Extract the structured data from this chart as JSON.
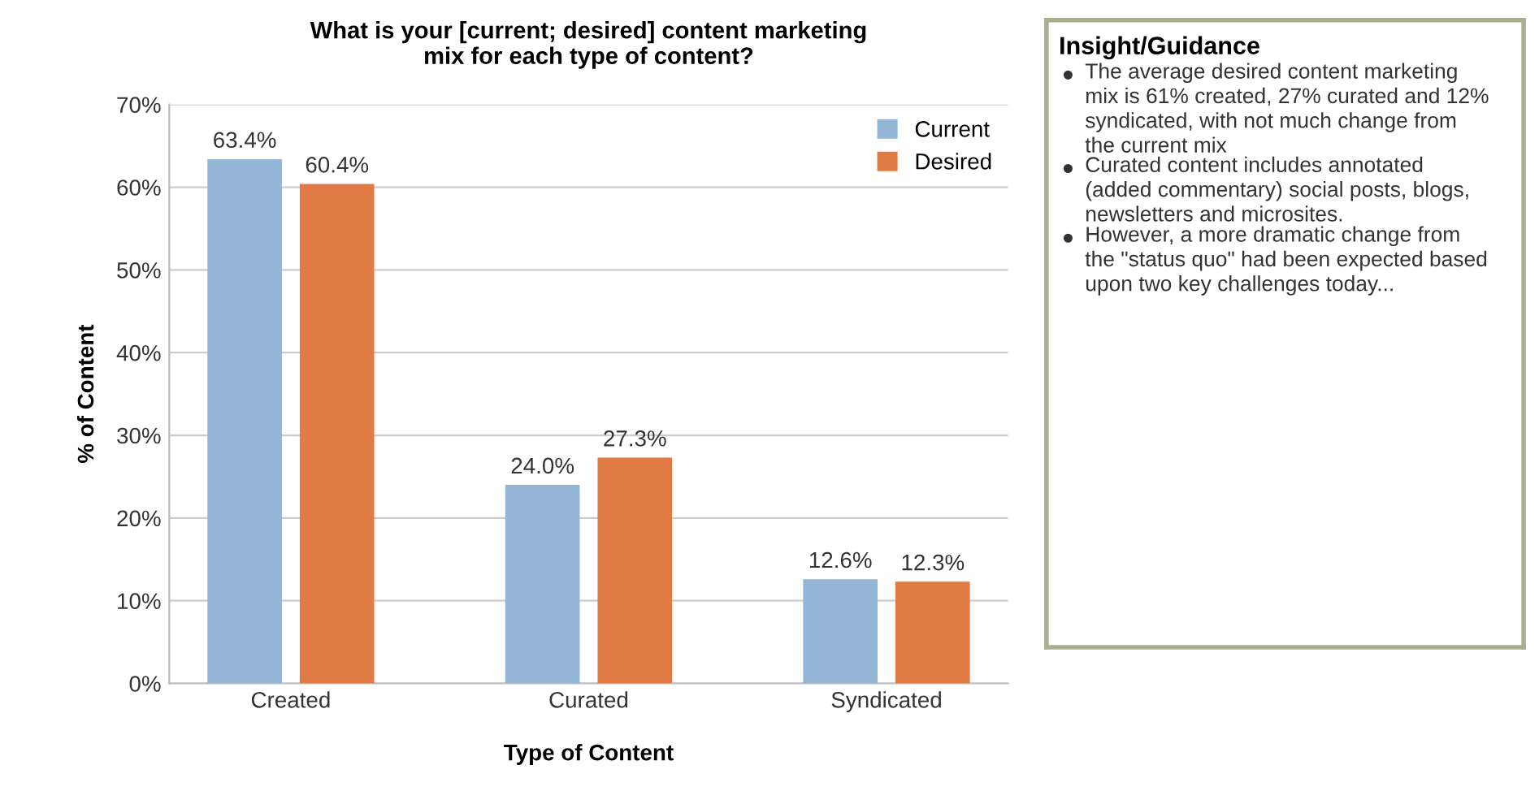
{
  "chart_data": [
    {
      "type": "bar",
      "title": "What is your [current; desired] content marketing\nmix for each type of content?",
      "xlabel": "Type of Content",
      "ylabel": "% of Content",
      "categories": [
        "Created",
        "Curated",
        "Syndicated"
      ],
      "series": [
        {
          "name": "Current",
          "color": "#94b6d6",
          "values": [
            63.4,
            24.0,
            12.6
          ]
        },
        {
          "name": "Desired",
          "color": "#e07b45",
          "values": [
            60.4,
            27.3,
            12.3
          ]
        }
      ],
      "ylim": [
        0,
        70
      ],
      "yticks": [
        {
          "value": 0,
          "label": "0%"
        },
        {
          "value": 10,
          "label": "10%"
        },
        {
          "value": 20,
          "label": "20%"
        },
        {
          "value": 30,
          "label": "30%"
        },
        {
          "value": 40,
          "label": "40%"
        },
        {
          "value": 50,
          "label": "50%"
        },
        {
          "value": 60,
          "label": "60%"
        },
        {
          "value": 70,
          "label": "70%"
        }
      ],
      "value_labels": [
        [
          "63.4%",
          "24.0%",
          "12.6%"
        ],
        [
          "60.4%",
          "27.3%",
          "12.3%"
        ]
      ],
      "grid": "y",
      "legend": "top right"
    },
    {
      "type": "other",
      "title": "Insight/Guidance",
      "annotations": [
        "The average desired content marketing mix is 61% created, 27% curated and 12% syndicated, with not much change from the current mix",
        "Curated content includes annotated (added commentary) social posts, blogs, newsletters and microsites.",
        "However, a more dramatic change from the \"status quo\" had been expected based upon two key challenges today..."
      ]
    }
  ]
}
